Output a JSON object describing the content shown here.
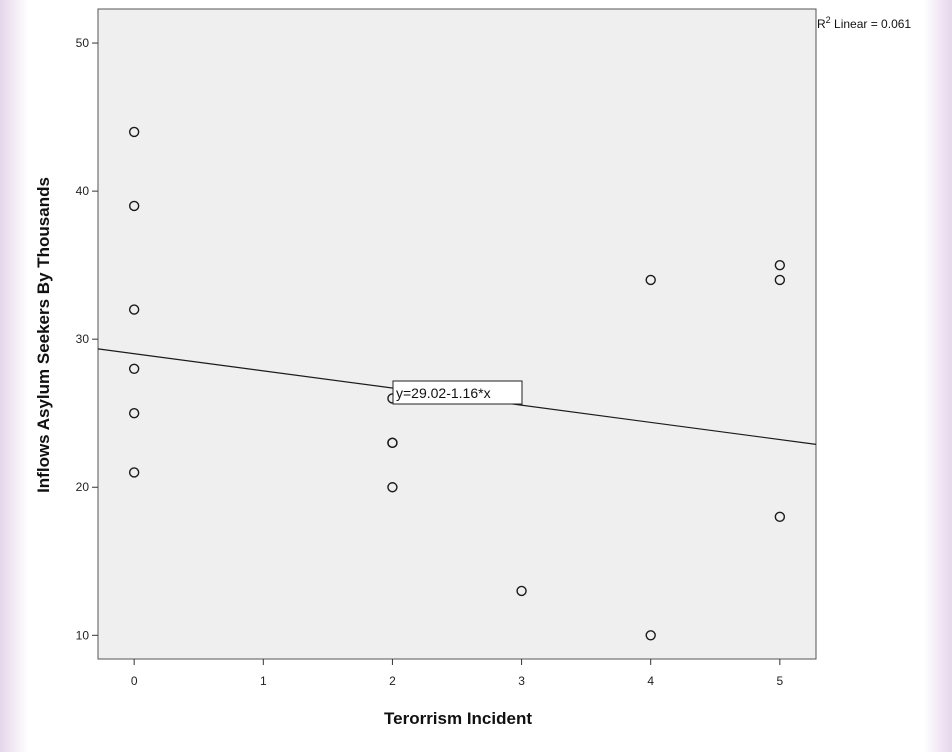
{
  "chart_data": {
    "type": "scatter",
    "title": "",
    "xlabel": "Terorrism Incident",
    "ylabel": "Inflows Asylum Seekers By Thousands",
    "xlim": [
      -0.28,
      5.28
    ],
    "ylim": [
      8.4,
      52.3
    ],
    "x_ticks": [
      0,
      1,
      2,
      3,
      4,
      5
    ],
    "y_ticks": [
      10,
      20,
      30,
      40,
      50
    ],
    "grid": false,
    "points": [
      {
        "x": 0,
        "y": 44
      },
      {
        "x": 0,
        "y": 39
      },
      {
        "x": 0,
        "y": 32
      },
      {
        "x": 0,
        "y": 28
      },
      {
        "x": 0,
        "y": 25
      },
      {
        "x": 0,
        "y": 21
      },
      {
        "x": 2,
        "y": 26
      },
      {
        "x": 2,
        "y": 23
      },
      {
        "x": 2,
        "y": 23
      },
      {
        "x": 2,
        "y": 20
      },
      {
        "x": 3,
        "y": 13
      },
      {
        "x": 4,
        "y": 34
      },
      {
        "x": 4,
        "y": 10
      },
      {
        "x": 5,
        "y": 35
      },
      {
        "x": 5,
        "y": 34
      },
      {
        "x": 5,
        "y": 18
      }
    ],
    "fit_line": {
      "intercept": 29.02,
      "slope": -1.16
    },
    "equation_label": "y=29.02-1.16*x",
    "r2_prefix": "R",
    "r2_superscript": "2",
    "r2_suffix": " Linear = 0.061",
    "colors": {
      "plot_bg": "#efefef",
      "marker": "#1a1a1a",
      "line": "#1a1a1a"
    }
  }
}
